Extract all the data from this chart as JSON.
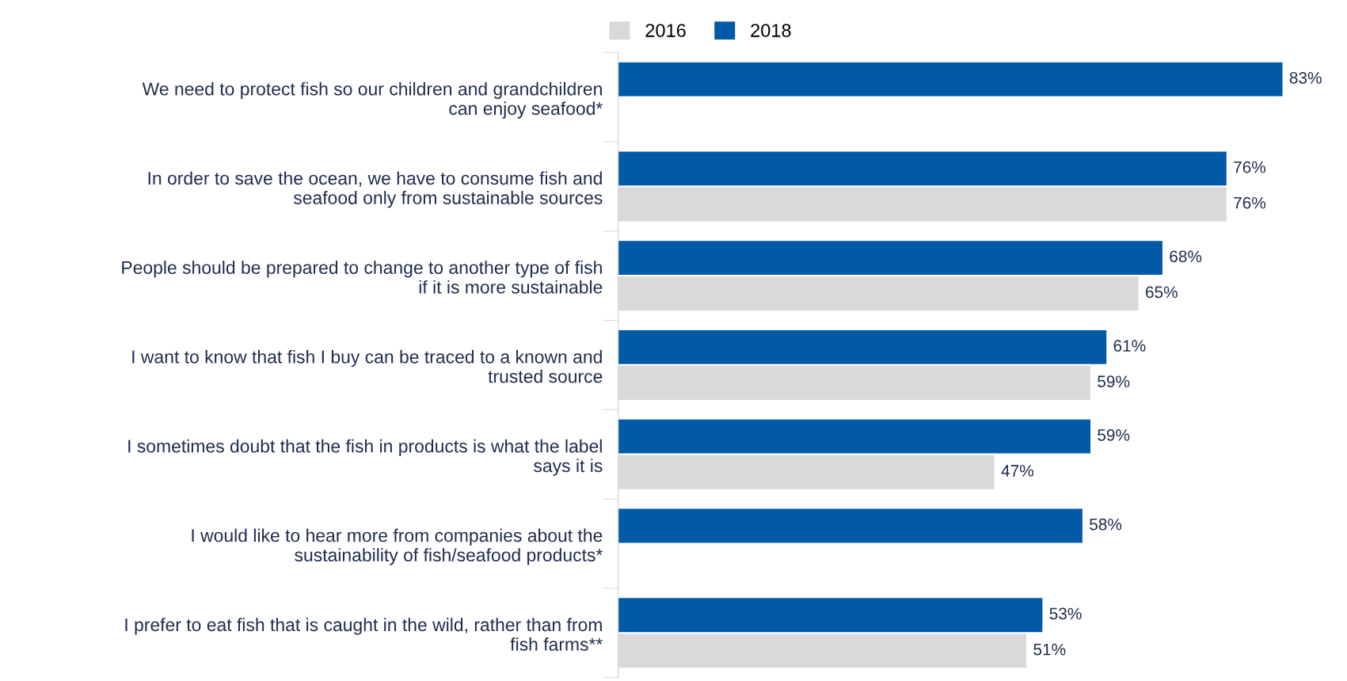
{
  "chart_data": {
    "type": "bar",
    "orientation": "horizontal",
    "categories": [
      "We need to protect fish so our children and grandchildren\ncan enjoy seafood*",
      "In order to save the ocean, we have to consume fish and\nseafood only from sustainable sources",
      "People should be prepared to change to another type of fish\nif it is more sustainable",
      "I want to know that fish I buy can be traced to a known and\ntrusted source",
      "I sometimes doubt that the fish in products is what the label\nsays it is",
      "I would like to hear more from companies about the\nsustainability of fish/seafood products*",
      "I prefer to eat fish that is caught in the wild, rather than from\nfish farms**"
    ],
    "series": [
      {
        "name": "2016",
        "color": "#d9d9d9",
        "values": [
          null,
          76,
          65,
          59,
          47,
          null,
          51
        ],
        "value_labels": [
          null,
          "76%",
          "65%",
          "59%",
          "47%",
          null,
          "51%"
        ]
      },
      {
        "name": "2018",
        "color": "#005aa6",
        "values": [
          83,
          76,
          68,
          61,
          59,
          58,
          53
        ],
        "value_labels": [
          "83%",
          "76%",
          "68%",
          "61%",
          "59%",
          "58%",
          "53%"
        ]
      }
    ],
    "legend": "top",
    "grid": false
  }
}
